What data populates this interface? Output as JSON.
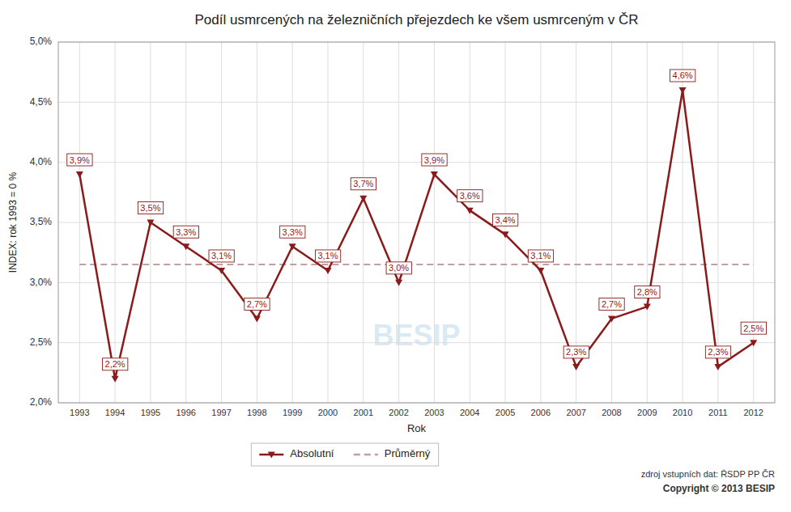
{
  "chart_data": {
    "type": "line",
    "title": "Podíl usmrcených na železničních přejezdech ke všem usmrceným v ČR",
    "x_label": "Rok",
    "y_label": "INDEX: rok 1993 = 0 %",
    "x": [
      1993,
      1994,
      1995,
      1996,
      1997,
      1998,
      1999,
      2000,
      2001,
      2002,
      2003,
      2004,
      2005,
      2006,
      2007,
      2008,
      2009,
      2010,
      2011,
      2012
    ],
    "series": [
      {
        "name": "Absolutní",
        "color": "#8B1A1A",
        "marker": "triangle-down",
        "line_style": "solid",
        "values": [
          3.9,
          2.2,
          3.5,
          3.3,
          3.1,
          2.7,
          3.3,
          3.1,
          3.7,
          3.0,
          3.9,
          3.6,
          3.4,
          3.1,
          2.3,
          2.7,
          2.8,
          4.6,
          2.3,
          2.5
        ],
        "value_labels": [
          "3,9%",
          "2,2%",
          "3,5%",
          "3,3%",
          "3,1%",
          "2,7%",
          "3,3%",
          "3,1%",
          "3,7%",
          "3,0%",
          "3,9%",
          "3,6%",
          "3,4%",
          "3,1%",
          "2,3%",
          "2,7%",
          "2,8%",
          "4,6%",
          "2,3%",
          "2,5%"
        ]
      },
      {
        "name": "Průměrný",
        "color": "#C0A0A0",
        "line_style": "dashed",
        "values": [
          3.15,
          3.15,
          3.15,
          3.15,
          3.15,
          3.15,
          3.15,
          3.15,
          3.15,
          3.15,
          3.15,
          3.15,
          3.15,
          3.15,
          3.15,
          3.15,
          3.15,
          3.15,
          3.15,
          3.15
        ]
      }
    ],
    "data_labels": true,
    "xlim": [
      1992.4,
      2012.6
    ],
    "xticks": [
      1993,
      1994,
      1995,
      1996,
      1997,
      1998,
      1999,
      2000,
      2001,
      2002,
      2003,
      2004,
      2005,
      2006,
      2007,
      2008,
      2009,
      2010,
      2011,
      2012
    ],
    "ylim": [
      2.0,
      5.0
    ],
    "yticks": [
      {
        "value": 2.0,
        "label": "2,0%"
      },
      {
        "value": 2.5,
        "label": "2,5%"
      },
      {
        "value": 3.0,
        "label": "3,0%"
      },
      {
        "value": 3.5,
        "label": "3,5%"
      },
      {
        "value": 4.0,
        "label": "4,0%"
      },
      {
        "value": 4.5,
        "label": "4,5%"
      },
      {
        "value": 5.0,
        "label": "5,0%"
      }
    ],
    "grid": true,
    "legend": "bottom",
    "annotations": [
      "BESIP",
      "zdroj vstupních dat: ŘSDP PP ČR",
      "Copyright © 2013  BESIP"
    ]
  }
}
